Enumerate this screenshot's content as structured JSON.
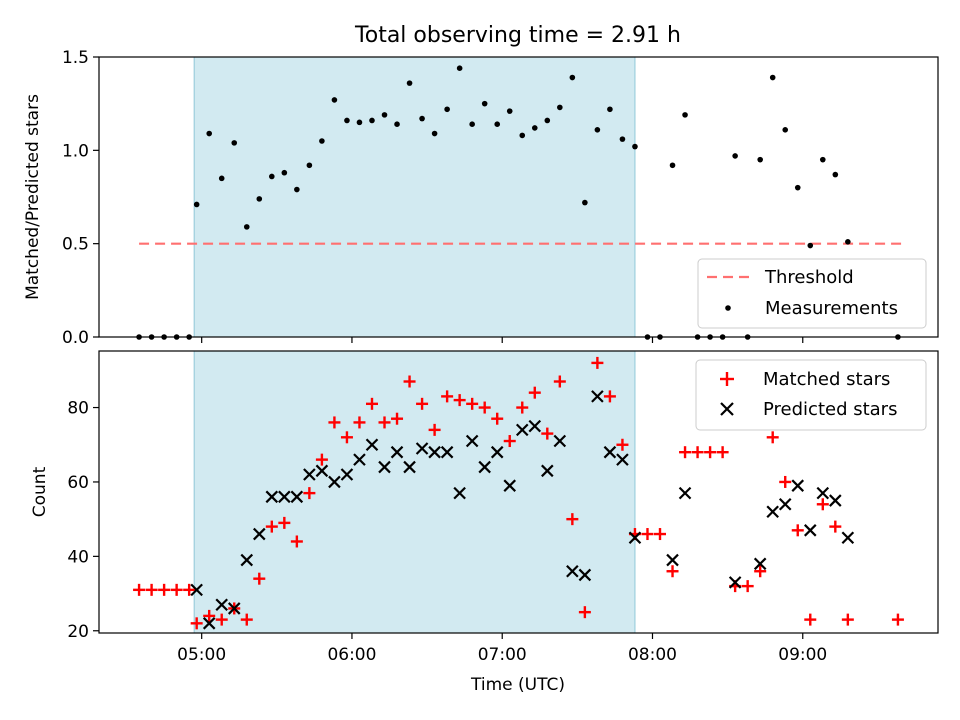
{
  "title": "Total observing time = 2.91 h",
  "colors": {
    "shade": "#add8e6",
    "threshold": "#ff7070",
    "matched": "#ff0000",
    "predicted": "#000000",
    "measurement": "#000000"
  },
  "chart_data": [
    {
      "type": "scatter",
      "ylabel": "Matched/Predicted stars",
      "ylim": [
        0,
        1.5
      ],
      "yticks": [
        0.0,
        0.5,
        1.0,
        1.5
      ],
      "ytick_labels": [
        "0.0",
        "0.5",
        "1.0",
        "1.5"
      ],
      "shaded_span": [
        "04:57",
        "07:53"
      ],
      "threshold": {
        "name": "Threshold",
        "value": 0.5,
        "x_range": [
          "04:35",
          "09:40"
        ]
      },
      "legend_position": "lower-right",
      "series": [
        {
          "name": "Measurements",
          "points": [
            [
              "04:35",
              0
            ],
            [
              "04:40",
              0
            ],
            [
              "04:45",
              0
            ],
            [
              "04:50",
              0
            ],
            [
              "04:55",
              0
            ],
            [
              "04:58",
              0.71
            ],
            [
              "05:03",
              1.09
            ],
            [
              "05:08",
              0.85
            ],
            [
              "05:13",
              1.04
            ],
            [
              "05:18",
              0.59
            ],
            [
              "05:23",
              0.74
            ],
            [
              "05:28",
              0.86
            ],
            [
              "05:33",
              0.88
            ],
            [
              "05:38",
              0.79
            ],
            [
              "05:43",
              0.92
            ],
            [
              "05:48",
              1.05
            ],
            [
              "05:53",
              1.27
            ],
            [
              "05:58",
              1.16
            ],
            [
              "06:03",
              1.15
            ],
            [
              "06:08",
              1.16
            ],
            [
              "06:13",
              1.19
            ],
            [
              "06:18",
              1.14
            ],
            [
              "06:23",
              1.36
            ],
            [
              "06:28",
              1.17
            ],
            [
              "06:33",
              1.09
            ],
            [
              "06:38",
              1.22
            ],
            [
              "06:43",
              1.44
            ],
            [
              "06:48",
              1.14
            ],
            [
              "06:53",
              1.25
            ],
            [
              "06:58",
              1.14
            ],
            [
              "07:03",
              1.21
            ],
            [
              "07:08",
              1.08
            ],
            [
              "07:13",
              1.12
            ],
            [
              "07:18",
              1.16
            ],
            [
              "07:23",
              1.23
            ],
            [
              "07:28",
              1.39
            ],
            [
              "07:33",
              0.72
            ],
            [
              "07:38",
              1.11
            ],
            [
              "07:43",
              1.22
            ],
            [
              "07:48",
              1.06
            ],
            [
              "07:53",
              1.02
            ],
            [
              "07:58",
              0
            ],
            [
              "08:03",
              0
            ],
            [
              "08:08",
              0.92
            ],
            [
              "08:13",
              1.19
            ],
            [
              "08:18",
              0
            ],
            [
              "08:23",
              0
            ],
            [
              "08:28",
              0
            ],
            [
              "08:33",
              0.97
            ],
            [
              "08:38",
              0
            ],
            [
              "08:43",
              0.95
            ],
            [
              "08:48",
              1.39
            ],
            [
              "08:53",
              1.11
            ],
            [
              "08:58",
              0.8
            ],
            [
              "09:03",
              0.49
            ],
            [
              "09:08",
              0.95
            ],
            [
              "09:13",
              0.87
            ],
            [
              "09:18",
              0.51
            ],
            [
              "09:38",
              0
            ]
          ]
        }
      ]
    },
    {
      "type": "scatter",
      "xlabel": "Time (UTC)",
      "ylabel": "Count",
      "ylim": [
        19.4,
        95.2
      ],
      "yticks": [
        20,
        40,
        60,
        80
      ],
      "ytick_labels": [
        "20",
        "40",
        "60",
        "80"
      ],
      "xlim": [
        "04:19",
        "09:54"
      ],
      "xticks": [
        "05:00",
        "06:00",
        "07:00",
        "08:00",
        "09:00"
      ],
      "xtick_labels": [
        "05:00",
        "06:00",
        "07:00",
        "08:00",
        "09:00"
      ],
      "shaded_span": [
        "04:57",
        "07:53"
      ],
      "legend_position": "upper-right",
      "series": [
        {
          "name": "Matched stars",
          "marker": "+",
          "points": [
            [
              "04:35",
              31
            ],
            [
              "04:40",
              31
            ],
            [
              "04:45",
              31
            ],
            [
              "04:50",
              31
            ],
            [
              "04:55",
              31
            ],
            [
              "04:58",
              22
            ],
            [
              "05:03",
              24
            ],
            [
              "05:08",
              23
            ],
            [
              "05:13",
              26
            ],
            [
              "05:18",
              23
            ],
            [
              "05:23",
              34
            ],
            [
              "05:28",
              48
            ],
            [
              "05:33",
              49
            ],
            [
              "05:38",
              44
            ],
            [
              "05:43",
              57
            ],
            [
              "05:48",
              66
            ],
            [
              "05:53",
              76
            ],
            [
              "05:58",
              72
            ],
            [
              "06:03",
              76
            ],
            [
              "06:08",
              81
            ],
            [
              "06:13",
              76
            ],
            [
              "06:18",
              77
            ],
            [
              "06:23",
              87
            ],
            [
              "06:28",
              81
            ],
            [
              "06:33",
              74
            ],
            [
              "06:38",
              83
            ],
            [
              "06:43",
              82
            ],
            [
              "06:48",
              81
            ],
            [
              "06:53",
              80
            ],
            [
              "06:58",
              77
            ],
            [
              "07:03",
              71
            ],
            [
              "07:08",
              80
            ],
            [
              "07:13",
              84
            ],
            [
              "07:18",
              73
            ],
            [
              "07:23",
              87
            ],
            [
              "07:28",
              50
            ],
            [
              "07:33",
              25
            ],
            [
              "07:38",
              92
            ],
            [
              "07:43",
              83
            ],
            [
              "07:48",
              70
            ],
            [
              "07:53",
              46
            ],
            [
              "07:58",
              46
            ],
            [
              "08:03",
              46
            ],
            [
              "08:08",
              36
            ],
            [
              "08:13",
              68
            ],
            [
              "08:18",
              68
            ],
            [
              "08:23",
              68
            ],
            [
              "08:28",
              68
            ],
            [
              "08:33",
              32
            ],
            [
              "08:38",
              32
            ],
            [
              "08:43",
              36
            ],
            [
              "08:48",
              72
            ],
            [
              "08:53",
              60
            ],
            [
              "08:58",
              47
            ],
            [
              "09:03",
              23
            ],
            [
              "09:08",
              54
            ],
            [
              "09:13",
              48
            ],
            [
              "09:18",
              23
            ],
            [
              "09:38",
              23
            ]
          ]
        },
        {
          "name": "Predicted stars",
          "marker": "x",
          "points": [
            [
              "04:58",
              31
            ],
            [
              "05:03",
              22
            ],
            [
              "05:08",
              27
            ],
            [
              "05:13",
              26
            ],
            [
              "05:18",
              39
            ],
            [
              "05:23",
              46
            ],
            [
              "05:28",
              56
            ],
            [
              "05:33",
              56
            ],
            [
              "05:38",
              56
            ],
            [
              "05:43",
              62
            ],
            [
              "05:48",
              63
            ],
            [
              "05:53",
              60
            ],
            [
              "05:58",
              62
            ],
            [
              "06:03",
              66
            ],
            [
              "06:08",
              70
            ],
            [
              "06:13",
              64
            ],
            [
              "06:18",
              68
            ],
            [
              "06:23",
              64
            ],
            [
              "06:28",
              69
            ],
            [
              "06:33",
              68
            ],
            [
              "06:38",
              68
            ],
            [
              "06:43",
              57
            ],
            [
              "06:48",
              71
            ],
            [
              "06:53",
              64
            ],
            [
              "06:58",
              68
            ],
            [
              "07:03",
              59
            ],
            [
              "07:08",
              74
            ],
            [
              "07:13",
              75
            ],
            [
              "07:18",
              63
            ],
            [
              "07:23",
              71
            ],
            [
              "07:28",
              36
            ],
            [
              "07:33",
              35
            ],
            [
              "07:38",
              83
            ],
            [
              "07:43",
              68
            ],
            [
              "07:48",
              66
            ],
            [
              "07:53",
              45
            ],
            [
              "08:08",
              39
            ],
            [
              "08:13",
              57
            ],
            [
              "08:33",
              33
            ],
            [
              "08:43",
              38
            ],
            [
              "08:48",
              52
            ],
            [
              "08:53",
              54
            ],
            [
              "08:58",
              59
            ],
            [
              "09:03",
              47
            ],
            [
              "09:08",
              57
            ],
            [
              "09:13",
              55
            ],
            [
              "09:18",
              45
            ]
          ]
        }
      ]
    }
  ]
}
